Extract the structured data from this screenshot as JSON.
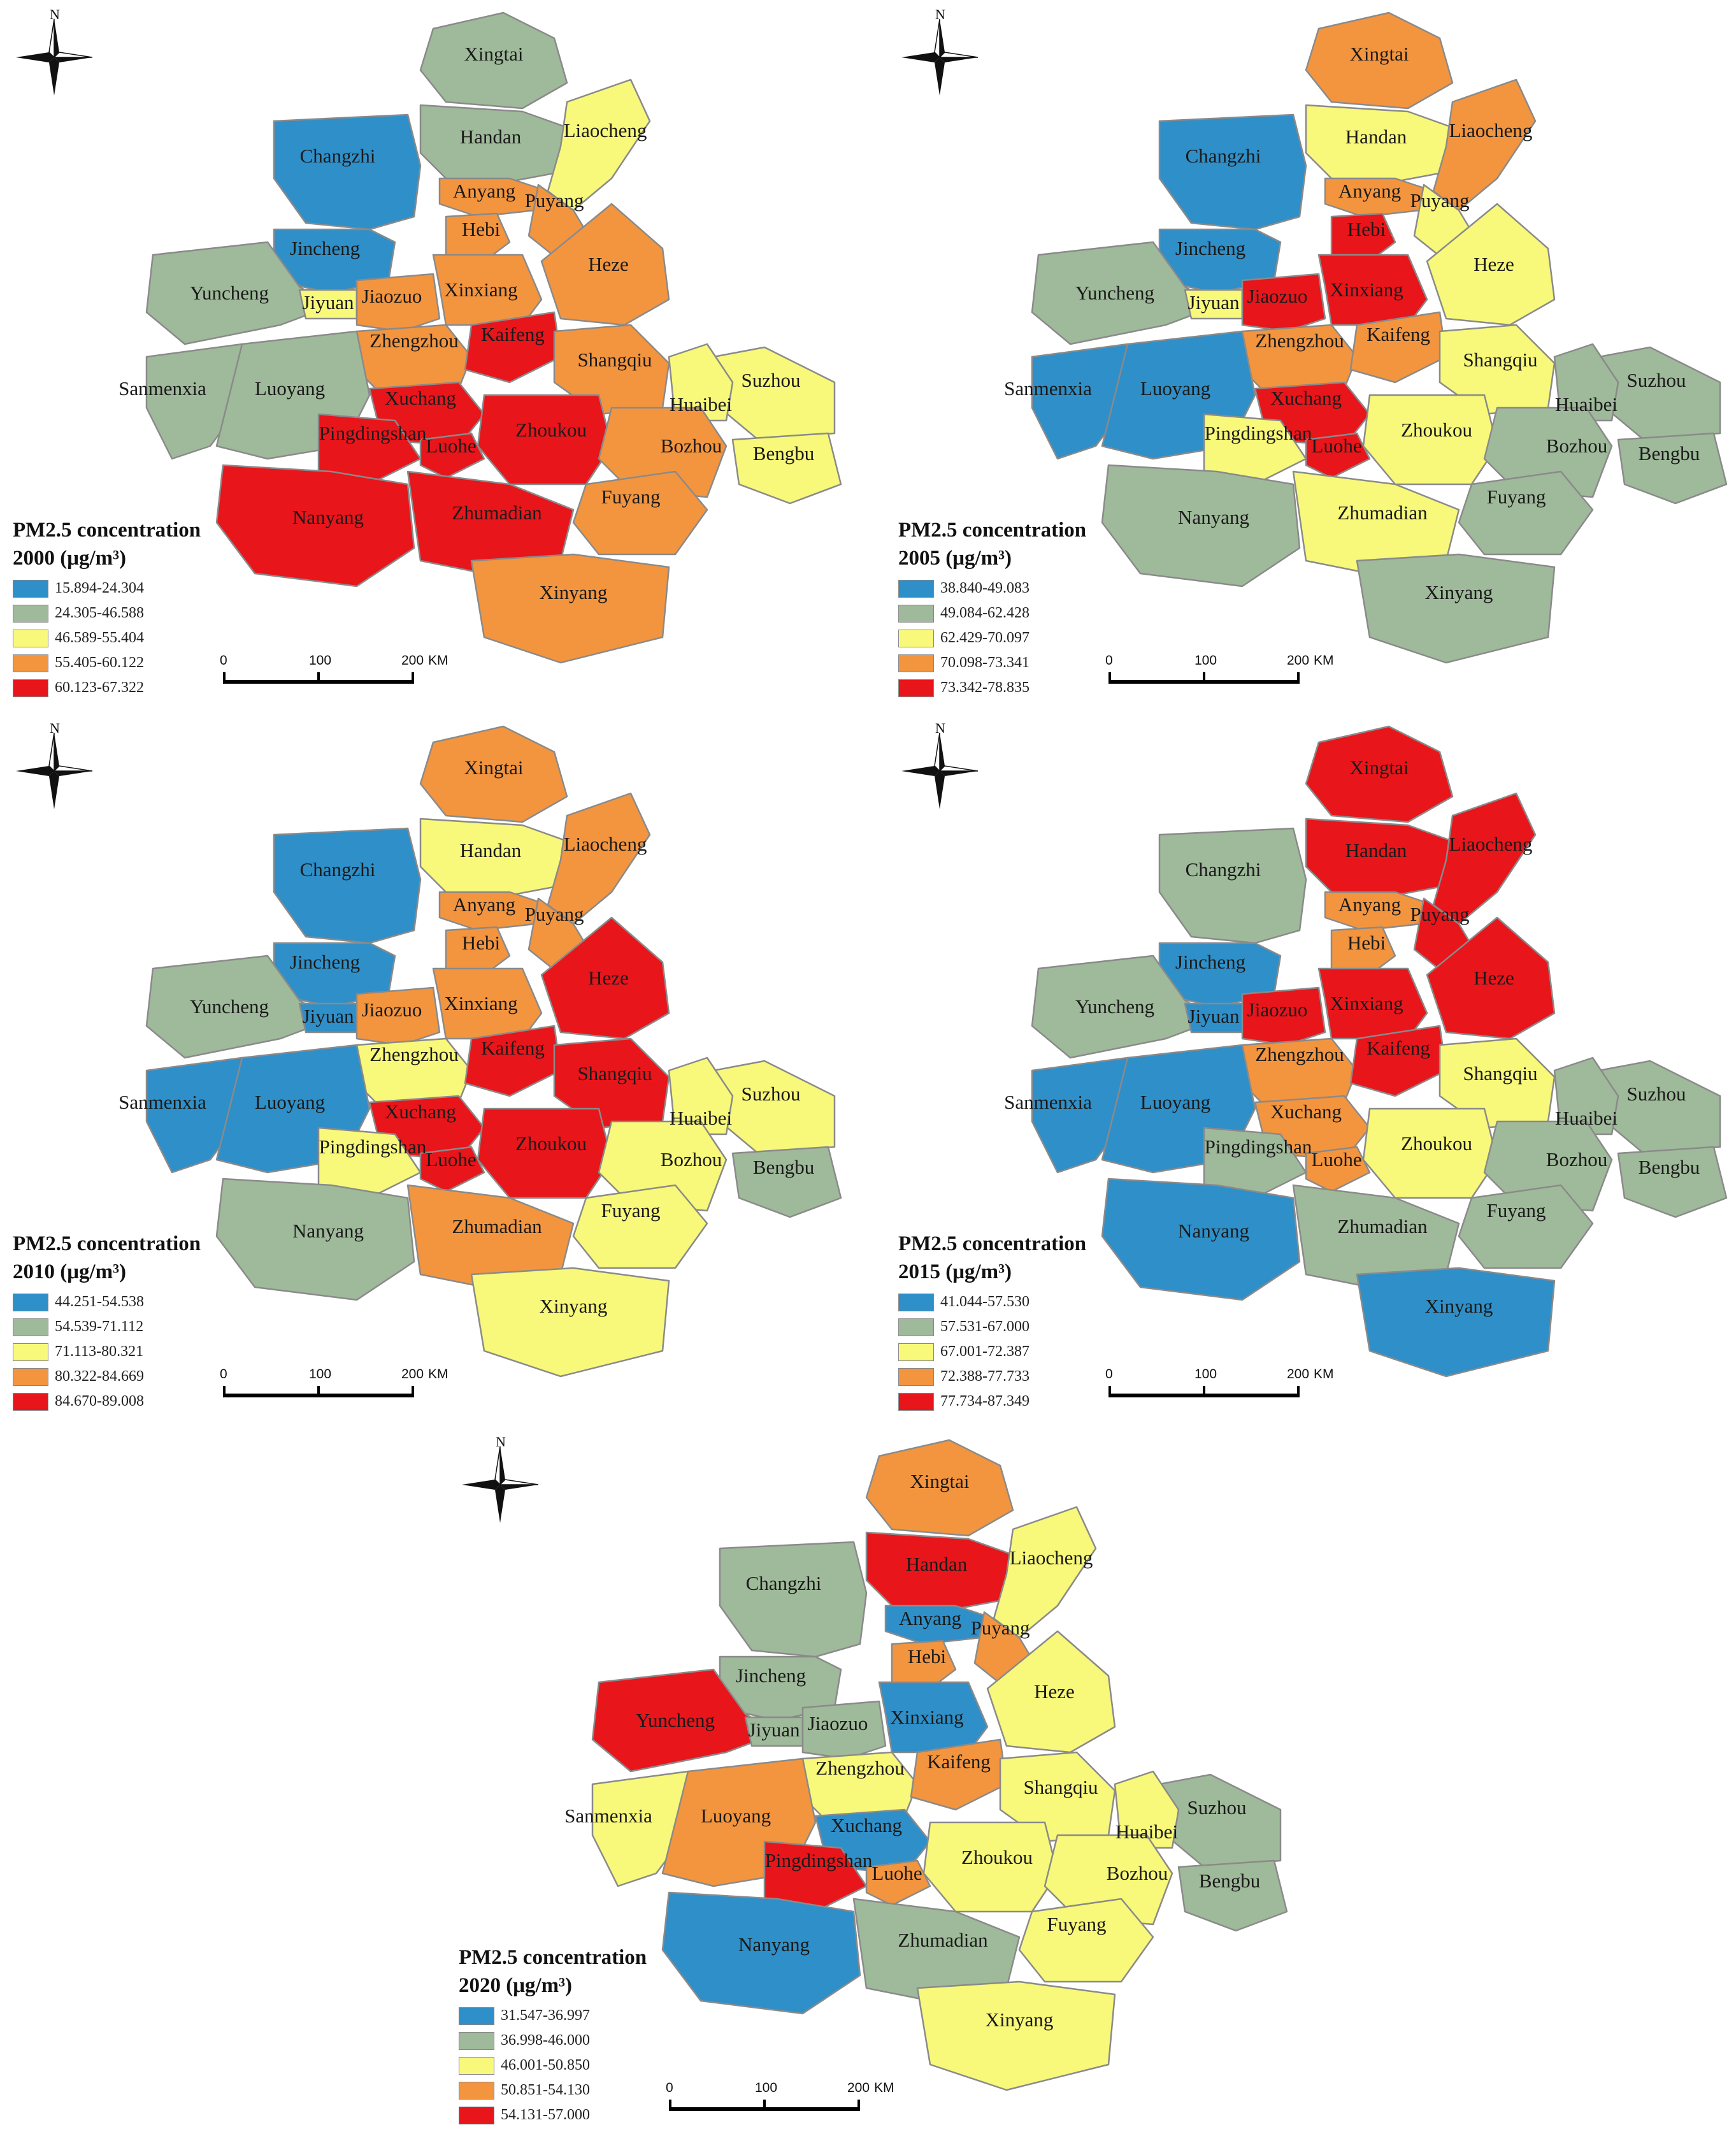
{
  "figure": {
    "cities": [
      "Xingtai",
      "Handan",
      "Liaocheng",
      "Changzhi",
      "Anyang",
      "Puyang",
      "Hebi",
      "Jincheng",
      "Heze",
      "Yuncheng",
      "Jiyuan",
      "Jiaozuo",
      "Xinxiang",
      "Zhengzhou",
      "Kaifeng",
      "Shangqiu",
      "Suzhou",
      "Huaibei",
      "Sanmenxia",
      "Luoyang",
      "Xuchang",
      "Pingdingshan",
      "Luohe",
      "Zhoukou",
      "Bozhou",
      "Bengbu",
      "Fuyang",
      "Nanyang",
      "Zhumadian",
      "Xinyang"
    ],
    "class_colors": [
      "#2f8fc8",
      "#9fba9a",
      "#f8f87a",
      "#f3953f",
      "#e8151b"
    ],
    "north_label": "N",
    "scale": {
      "ticks": [
        "0",
        "100",
        "200"
      ],
      "unit": "KM"
    },
    "panels": [
      {
        "title_line1": "PM2.5 concentration",
        "title_line2": "2000 (μg/m³)",
        "legend": [
          "15.894-24.304",
          "24.305-46.588",
          "46.589-55.404",
          "55.405-60.122",
          "60.123-67.322"
        ],
        "classes": [
          1,
          1,
          2,
          0,
          3,
          3,
          3,
          0,
          3,
          1,
          2,
          3,
          3,
          3,
          4,
          3,
          2,
          2,
          1,
          1,
          4,
          4,
          4,
          4,
          3,
          2,
          3,
          4,
          4,
          3
        ]
      },
      {
        "title_line1": "PM2.5 concentration",
        "title_line2": "2005 (μg/m³)",
        "legend": [
          "38.840-49.083",
          "49.084-62.428",
          "62.429-70.097",
          "70.098-73.341",
          "73.342-78.835"
        ],
        "classes": [
          3,
          2,
          3,
          0,
          3,
          2,
          4,
          0,
          2,
          1,
          2,
          4,
          4,
          3,
          3,
          2,
          1,
          1,
          0,
          0,
          4,
          2,
          4,
          2,
          1,
          1,
          1,
          1,
          2,
          1
        ]
      },
      {
        "title_line1": "PM2.5 concentration",
        "title_line2": "2010 (μg/m³)",
        "legend": [
          "44.251-54.538",
          "54.539-71.112",
          "71.113-80.321",
          "80.322-84.669",
          "84.670-89.008"
        ],
        "classes": [
          3,
          2,
          3,
          0,
          3,
          3,
          3,
          0,
          4,
          1,
          0,
          3,
          3,
          2,
          4,
          4,
          2,
          2,
          0,
          0,
          4,
          2,
          4,
          4,
          2,
          1,
          2,
          1,
          3,
          2
        ]
      },
      {
        "title_line1": "PM2.5 concentration",
        "title_line2": "2015 (μg/m³)",
        "legend": [
          "41.044-57.530",
          "57.531-67.000",
          "67.001-72.387",
          "72.388-77.733",
          "77.734-87.349"
        ],
        "classes": [
          4,
          4,
          4,
          1,
          3,
          4,
          3,
          0,
          4,
          1,
          0,
          4,
          4,
          3,
          4,
          2,
          1,
          1,
          0,
          0,
          3,
          1,
          3,
          2,
          1,
          1,
          1,
          0,
          1,
          0
        ]
      },
      {
        "title_line1": "PM2.5 concentration",
        "title_line2": "2020 (μg/m³)",
        "legend": [
          "31.547-36.997",
          "36.998-46.000",
          "46.001-50.850",
          "50.851-54.130",
          "54.131-57.000"
        ],
        "classes": [
          3,
          4,
          2,
          1,
          0,
          3,
          3,
          1,
          2,
          4,
          1,
          1,
          0,
          2,
          3,
          2,
          1,
          2,
          2,
          3,
          0,
          4,
          3,
          2,
          2,
          1,
          2,
          0,
          1,
          2
        ]
      }
    ]
  }
}
